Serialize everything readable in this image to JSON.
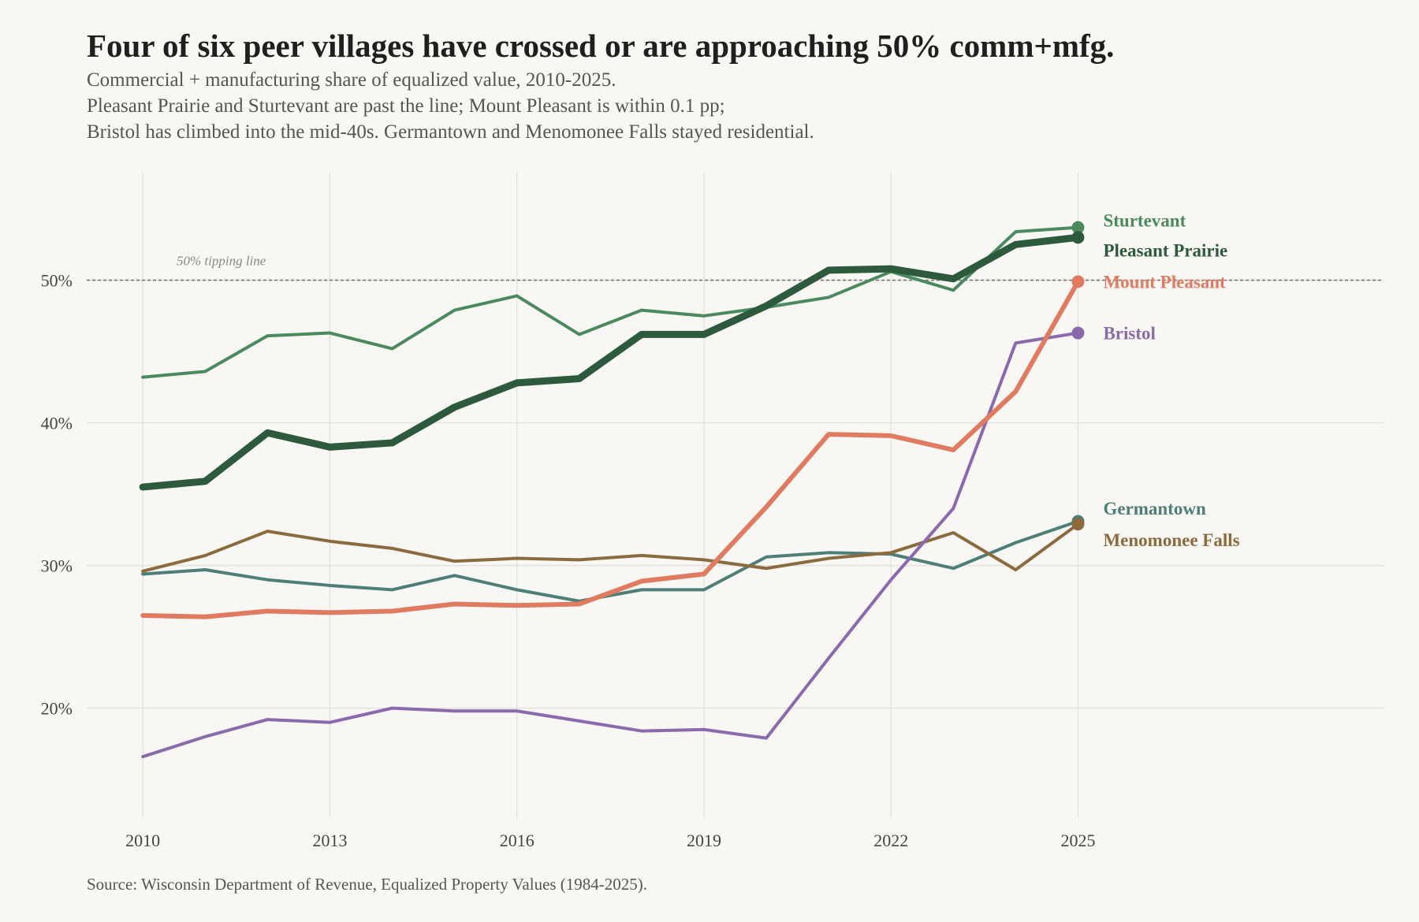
{
  "title": "Four of six peer villages have crossed or are approaching 50% comm+mfg.",
  "subtitle_lines": [
    "Commercial + manufacturing share of equalized value, 2010-2025.",
    "Pleasant Prairie and Sturtevant are past the line; Mount Pleasant is within 0.1 pp;",
    "Bristol has climbed into the mid-40s. Germantown and Menomonee Falls stayed residential."
  ],
  "source": "Source: Wisconsin Department of Revenue, Equalized Property Values (1984-2025).",
  "chart_data": {
    "type": "line",
    "x": [
      2010,
      2011,
      2012,
      2013,
      2014,
      2015,
      2016,
      2017,
      2018,
      2019,
      2020,
      2021,
      2022,
      2023,
      2024,
      2025
    ],
    "xticks": [
      2010,
      2013,
      2016,
      2019,
      2022,
      2025
    ],
    "xtick_labels": [
      "2010",
      "2013",
      "2016",
      "2019",
      "2022",
      "2025"
    ],
    "yticks": [
      20,
      30,
      40,
      50
    ],
    "ytick_labels": [
      "20%",
      "30%",
      "40%",
      "50%"
    ],
    "xlim": [
      2009.1,
      2029.9
    ],
    "ylim": [
      12.3,
      57.6
    ],
    "grid": true,
    "reference_line": {
      "y": 50,
      "label": "50% tipping line",
      "color": "#777777"
    },
    "series": [
      {
        "name": "Germantown",
        "color": "#4e7e78",
        "width": 4,
        "values": [
          29.4,
          29.7,
          29.0,
          28.6,
          28.3,
          29.3,
          28.3,
          27.5,
          28.3,
          28.3,
          30.6,
          30.9,
          30.8,
          29.8,
          31.6,
          33.1
        ]
      },
      {
        "name": "Menomonee Falls",
        "color": "#8b6b3e",
        "width": 4,
        "values": [
          29.6,
          30.7,
          32.4,
          31.7,
          31.2,
          30.3,
          30.5,
          30.4,
          30.7,
          30.4,
          29.8,
          30.5,
          30.9,
          32.3,
          29.7,
          32.9
        ]
      },
      {
        "name": "Bristol",
        "color": "#8a6aad",
        "width": 4,
        "values": [
          16.6,
          18.0,
          19.2,
          19.0,
          20.0,
          19.8,
          19.8,
          19.1,
          18.4,
          18.5,
          17.9,
          23.5,
          29.0,
          34.0,
          45.6,
          46.3
        ]
      },
      {
        "name": "Mount Pleasant",
        "color": "#e07b62",
        "width": 6,
        "values": [
          26.5,
          26.4,
          26.8,
          26.7,
          26.8,
          27.3,
          27.2,
          27.3,
          28.9,
          29.4,
          34.1,
          39.2,
          39.1,
          38.1,
          42.2,
          49.9
        ]
      },
      {
        "name": "Sturtevant",
        "color": "#4a8a5e",
        "width": 4,
        "values": [
          43.2,
          43.6,
          46.1,
          46.3,
          45.2,
          47.9,
          48.9,
          46.2,
          47.9,
          47.5,
          48.1,
          48.8,
          50.6,
          49.3,
          53.4,
          53.7
        ]
      },
      {
        "name": "Pleasant Prairie",
        "color": "#2d5a3c",
        "width": 9,
        "values": [
          35.5,
          35.9,
          39.3,
          38.3,
          38.6,
          41.1,
          42.8,
          43.1,
          46.2,
          46.2,
          48.2,
          50.7,
          50.8,
          50.1,
          52.5,
          53.0
        ]
      }
    ],
    "end_labels": [
      {
        "series": "Sturtevant",
        "y": 54.2
      },
      {
        "series": "Pleasant Prairie",
        "y": 52.1
      },
      {
        "series": "Mount Pleasant",
        "y": 49.9
      },
      {
        "series": "Bristol",
        "y": 46.3
      },
      {
        "series": "Germantown",
        "y": 34.0
      },
      {
        "series": "Menomonee Falls",
        "y": 31.8
      }
    ]
  }
}
